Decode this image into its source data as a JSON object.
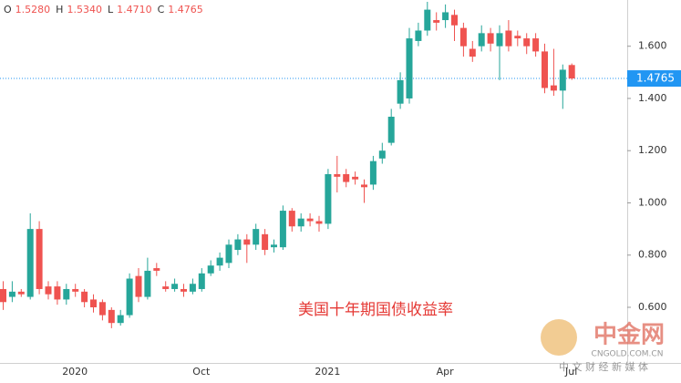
{
  "chart_data": {
    "type": "candlestick",
    "ohlc_legend": [
      {
        "label": "O",
        "value": "1.5280"
      },
      {
        "label": "H",
        "value": "1.5340"
      },
      {
        "label": "L",
        "value": "1.4710"
      },
      {
        "label": "C",
        "value": "1.4765"
      }
    ],
    "annotation": "美国十年期国债收益率",
    "categories": [
      null,
      null,
      null,
      null,
      null,
      null,
      null,
      null,
      "2020",
      null,
      null,
      null,
      null,
      null,
      null,
      null,
      null,
      null,
      null,
      null,
      null,
      null,
      "Oct",
      null,
      null,
      null,
      null,
      null,
      null,
      null,
      null,
      null,
      null,
      null,
      null,
      null,
      "2021",
      null,
      null,
      null,
      null,
      null,
      null,
      null,
      null,
      null,
      null,
      null,
      null,
      "Apr",
      null,
      null,
      null,
      null,
      null,
      null,
      null,
      null,
      null,
      null,
      null,
      null,
      null,
      "Jul"
    ],
    "open": [
      0.67,
      0.64,
      0.66,
      0.64,
      0.9,
      0.68,
      0.68,
      0.63,
      0.67,
      0.66,
      0.63,
      0.62,
      0.59,
      0.54,
      0.57,
      0.72,
      0.64,
      0.75,
      0.68,
      0.67,
      0.67,
      0.66,
      0.67,
      0.73,
      0.76,
      0.77,
      0.82,
      0.86,
      0.84,
      0.88,
      0.83,
      0.83,
      0.97,
      0.91,
      0.94,
      0.93,
      0.92,
      1.11,
      1.11,
      1.1,
      1.07,
      1.07,
      1.17,
      1.23,
      1.38,
      1.4,
      1.62,
      1.66,
      1.7,
      1.7,
      1.72,
      1.67,
      1.59,
      1.6,
      1.65,
      1.6,
      1.66,
      1.64,
      1.63,
      1.63,
      1.58,
      1.45,
      1.43,
      1.528
    ],
    "high": [
      0.7,
      0.7,
      0.67,
      0.96,
      0.93,
      0.7,
      0.7,
      0.69,
      0.69,
      0.67,
      0.65,
      0.63,
      0.6,
      0.59,
      0.73,
      0.75,
      0.79,
      0.77,
      0.7,
      0.71,
      0.69,
      0.71,
      0.75,
      0.78,
      0.81,
      0.86,
      0.88,
      0.88,
      0.92,
      0.9,
      0.86,
      0.99,
      0.98,
      0.96,
      0.96,
      0.95,
      1.13,
      1.18,
      1.13,
      1.12,
      1.09,
      1.18,
      1.23,
      1.36,
      1.5,
      1.67,
      1.69,
      1.77,
      1.73,
      1.76,
      1.74,
      1.69,
      1.62,
      1.68,
      1.67,
      1.68,
      1.7,
      1.66,
      1.65,
      1.65,
      1.61,
      1.59,
      1.53,
      1.534
    ],
    "low": [
      0.59,
      0.62,
      0.64,
      0.63,
      0.65,
      0.63,
      0.61,
      0.61,
      0.64,
      0.6,
      0.58,
      0.55,
      0.52,
      0.53,
      0.56,
      0.62,
      0.63,
      0.72,
      0.66,
      0.66,
      0.64,
      0.65,
      0.66,
      0.72,
      0.74,
      0.75,
      0.8,
      0.77,
      0.82,
      0.8,
      0.81,
      0.82,
      0.89,
      0.89,
      0.91,
      0.89,
      0.9,
      1.04,
      1.06,
      1.07,
      1.0,
      1.05,
      1.15,
      1.22,
      1.36,
      1.38,
      1.6,
      1.64,
      1.66,
      1.67,
      1.62,
      1.56,
      1.54,
      1.58,
      1.58,
      1.47,
      1.58,
      1.6,
      1.57,
      1.56,
      1.42,
      1.41,
      1.36,
      1.471
    ],
    "close": [
      0.62,
      0.66,
      0.65,
      0.9,
      0.67,
      0.65,
      0.63,
      0.67,
      0.66,
      0.62,
      0.6,
      0.57,
      0.54,
      0.57,
      0.71,
      0.64,
      0.74,
      0.74,
      0.67,
      0.69,
      0.66,
      0.69,
      0.73,
      0.76,
      0.79,
      0.84,
      0.86,
      0.84,
      0.9,
      0.82,
      0.84,
      0.97,
      0.91,
      0.94,
      0.93,
      0.92,
      1.11,
      1.1,
      1.08,
      1.09,
      1.06,
      1.16,
      1.2,
      1.33,
      1.47,
      1.63,
      1.66,
      1.74,
      1.69,
      1.73,
      1.68,
      1.6,
      1.56,
      1.65,
      1.61,
      1.65,
      1.6,
      1.63,
      1.6,
      1.58,
      1.44,
      1.43,
      1.51,
      1.4765
    ],
    "up_color": "#26a69a",
    "down_color": "#ef5350",
    "ylim": [
      0.387,
      1.777
    ],
    "yticks": [
      {
        "value": 0.6,
        "label": "0.600"
      },
      {
        "value": 0.8,
        "label": "0.800"
      },
      {
        "value": 1.0,
        "label": "1.000"
      },
      {
        "value": 1.2,
        "label": "1.200"
      },
      {
        "value": 1.4,
        "label": "1.400"
      },
      {
        "value": 1.6,
        "label": "1.600"
      }
    ],
    "price_line": {
      "value": 1.4765,
      "label": "1.4765",
      "color": "#2196f3"
    },
    "grid": false
  },
  "logo": {
    "name": "中金网",
    "url": "CNGOLD.COM.CN",
    "slogan": "中 文 财 经 新 媒 体"
  }
}
